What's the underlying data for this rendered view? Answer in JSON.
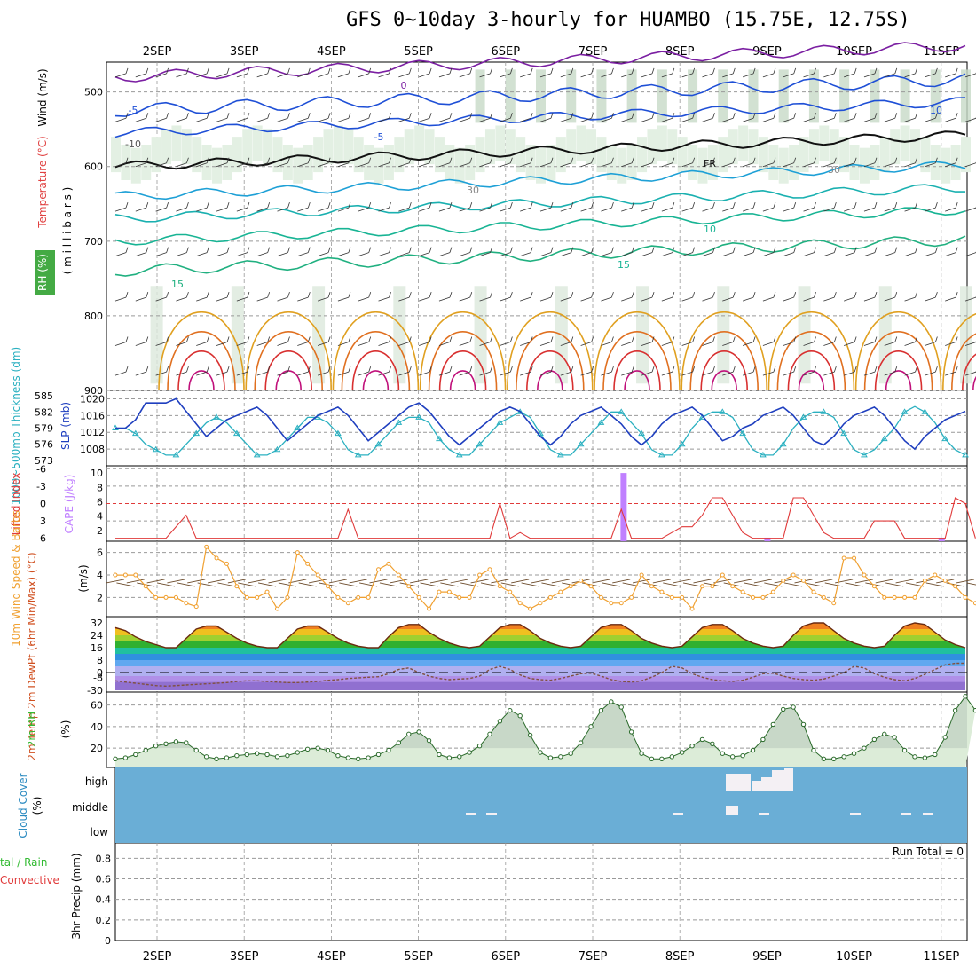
{
  "title": "GFS 0~10day 3-hourly for HUAMBO (15.75E, 12.75S)",
  "dates": [
    "2SEP",
    "3SEP",
    "4SEP",
    "5SEP",
    "6SEP",
    "7SEP",
    "8SEP",
    "9SEP",
    "10SEP",
    "11SEP"
  ],
  "colors": {
    "grid": "#999999",
    "rh_fill": "#2e7d4f",
    "slp": "#1f3fbf",
    "thickness": "#2ab0c0",
    "lifted": "#e03a3a",
    "cape": "#c080ff",
    "wind10": "#f0a030",
    "barb": "#6b4a2a",
    "rh2m": "#33bb33",
    "cloud": "#6aaed6",
    "precip_total": "#33bb33",
    "precip_conv": "#e03a3a"
  },
  "panels": {
    "upper": {
      "ylabel_wind": "Wind (m/s)",
      "ylabel_temp": "Temperature (°C)",
      "ylabel_rh": "RH (%)",
      "ylabel_mb": "( m i l l i b a r s )",
      "pressure_ticks": [
        "500",
        "600",
        "700",
        "800",
        "900"
      ],
      "contour_labels": [
        "0",
        "-5",
        "-5",
        "-10",
        "FR",
        "10",
        "15",
        "15",
        "10",
        "30",
        "30"
      ]
    },
    "slp": {
      "ylabel_left": "1000~500mb Thickness (dm)",
      "ylabel_right": "SLP (mb)",
      "thick_ticks": [
        "585",
        "582",
        "579",
        "576",
        "573"
      ],
      "slp_ticks": [
        "1020",
        "1016",
        "1012",
        "1008"
      ]
    },
    "li": {
      "ylabel_left": "Lifted Index",
      "ylabel_right": "CAPE (J/kg)",
      "li_ticks": [
        "-6",
        "-3",
        "0",
        "3",
        "6"
      ],
      "cape_ticks": [
        "10",
        "8",
        "6",
        "4",
        "2"
      ]
    },
    "wind10": {
      "ylabel": "10m Wind Speed & Barbs",
      "ylabel_units": "(m/s)",
      "ticks": [
        "6",
        "4",
        "2"
      ]
    },
    "temp2m": {
      "ylabel": "2m Temp 2m DewPt (6hr Min/Max) (°C)",
      "ticks": [
        "32",
        "24",
        "16",
        "8",
        "0",
        "-8",
        "-30"
      ]
    },
    "rh2m": {
      "ylabel": "2m RH",
      "ylabel_units": "(%)",
      "ticks": [
        "60",
        "40",
        "20"
      ]
    },
    "cloud": {
      "ylabel": "Cloud Cover",
      "ylabel_units": "(%)",
      "levels": [
        "high",
        "middle",
        "low"
      ]
    },
    "precip": {
      "ylabel": "3hr Precip (mm)",
      "legend_total": "tal / Rain",
      "legend_conv": "Convective",
      "ticks": [
        "0.8",
        "0.6",
        "0.4",
        "0.2",
        "0"
      ],
      "run_total": "Run Total = 0"
    }
  },
  "chart_data": [
    {
      "type": "line",
      "name": "slp_thickness",
      "series": [
        {
          "name": "SLP (mb)",
          "values": [
            1013,
            1013,
            1015,
            1019,
            1019,
            1019,
            1020,
            1017,
            1014,
            1011,
            1013,
            1015,
            1016,
            1017,
            1018,
            1016,
            1013,
            1010,
            1012,
            1014,
            1016,
            1017,
            1018,
            1016,
            1013,
            1010,
            1012,
            1014,
            1016,
            1018,
            1019,
            1017,
            1014,
            1011,
            1009,
            1011,
            1013,
            1015,
            1017,
            1018,
            1017,
            1014,
            1011,
            1009,
            1011,
            1014,
            1016,
            1017,
            1018,
            1016,
            1014,
            1011,
            1009,
            1011,
            1014,
            1016,
            1017,
            1018,
            1016,
            1013,
            1010,
            1011,
            1013,
            1014,
            1016,
            1017,
            1018,
            1016,
            1013,
            1010,
            1009,
            1011,
            1014,
            1016,
            1017,
            1018,
            1016,
            1013,
            1010,
            1008,
            1011,
            1013,
            1015,
            1016,
            1017
          ]
        },
        {
          "name": "Thickness (dm)",
          "values": [
            579,
            579,
            578,
            576,
            575,
            574,
            574,
            576,
            578,
            580,
            581,
            580,
            578,
            576,
            574,
            574,
            575,
            577,
            579,
            581,
            581,
            580,
            578,
            575,
            574,
            574,
            576,
            578,
            580,
            581,
            581,
            580,
            577,
            575,
            574,
            574,
            576,
            578,
            580,
            581,
            582,
            581,
            578,
            575,
            574,
            574,
            576,
            578,
            580,
            582,
            582,
            580,
            578,
            575,
            574,
            574,
            576,
            579,
            581,
            582,
            582,
            581,
            578,
            575,
            574,
            574,
            576,
            579,
            581,
            582,
            582,
            581,
            578,
            575,
            574,
            575,
            577,
            579,
            582,
            583,
            582,
            580,
            577,
            575,
            574
          ]
        }
      ]
    },
    {
      "type": "bar",
      "name": "cape",
      "x": [
        5.4,
        7.35,
        9.0,
        11.0
      ],
      "values": [
        0,
        10,
        1,
        1
      ]
    },
    {
      "type": "line",
      "name": "lifted_index",
      "values": [
        6,
        6,
        6,
        6,
        6,
        6,
        4,
        2,
        6,
        6,
        6,
        6,
        6,
        6,
        6,
        6,
        6,
        6,
        6,
        6,
        6,
        6,
        6,
        1,
        6,
        6,
        6,
        6,
        6,
        6,
        6,
        6,
        6,
        6,
        6,
        6,
        6,
        6,
        0,
        6,
        5,
        6,
        6,
        6,
        6,
        6,
        6,
        6,
        6,
        6,
        1,
        6,
        6,
        6,
        6,
        5,
        4,
        4,
        2,
        -1,
        -1,
        2,
        5,
        6,
        6,
        6,
        6,
        -1,
        -1,
        2,
        5,
        6,
        6,
        6,
        6,
        3,
        3,
        3,
        6,
        6,
        6,
        6,
        6,
        -1,
        0,
        6
      ]
    },
    {
      "type": "line",
      "name": "wind10m",
      "values": [
        4,
        4,
        4,
        3,
        2,
        2,
        2,
        1.5,
        1.2,
        6.5,
        5.5,
        5,
        3,
        2,
        2,
        2.5,
        1,
        2,
        6,
        5,
        4,
        3,
        2,
        1.5,
        2,
        2,
        4.5,
        5,
        4,
        3,
        2,
        1,
        2.5,
        2.5,
        2,
        2,
        4,
        4.5,
        3,
        2.5,
        1.5,
        1,
        1.5,
        2,
        2.5,
        3,
        3.5,
        3,
        2,
        1.5,
        1.5,
        2,
        4,
        3,
        2.5,
        2,
        2,
        1,
        3,
        3,
        4,
        3,
        2.5,
        2,
        2,
        2.5,
        3.5,
        4,
        3.5,
        2.5,
        2,
        1.5,
        5.5,
        5.5,
        4,
        3,
        2,
        2,
        2,
        2,
        3.5,
        4,
        3.5,
        3,
        2,
        1.5,
        1
      ]
    },
    {
      "type": "area",
      "name": "temp2m",
      "ylim": [
        -30,
        36
      ],
      "series": [
        {
          "name": "2m Temp",
          "values": [
            29,
            27,
            23,
            20,
            18,
            16,
            16,
            22,
            28,
            30,
            30,
            26,
            22,
            19,
            17,
            16,
            16,
            22,
            28,
            30,
            30,
            26,
            22,
            19,
            17,
            16,
            16,
            23,
            29,
            31,
            31,
            26,
            22,
            19,
            17,
            16,
            17,
            23,
            29,
            31,
            31,
            27,
            22,
            19,
            17,
            16,
            17,
            23,
            29,
            31,
            31,
            27,
            22,
            19,
            17,
            16,
            17,
            23,
            29,
            31,
            31,
            27,
            22,
            19,
            17,
            16,
            17,
            24,
            30,
            32,
            32,
            27,
            22,
            19,
            17,
            16,
            17,
            24,
            30,
            32,
            31,
            26,
            21,
            18,
            16
          ]
        },
        {
          "name": "2m DewPt",
          "values": [
            -14,
            -16,
            -18,
            -20,
            -22,
            -23,
            -22,
            -21,
            -20,
            -19,
            -18,
            -17,
            -15,
            -14,
            -14,
            -15,
            -16,
            -17,
            -17,
            -16,
            -15,
            -13,
            -12,
            -10,
            -9,
            -8,
            -7,
            -2,
            2,
            3,
            0,
            -6,
            -10,
            -12,
            -11,
            -10,
            -6,
            2,
            4,
            2,
            -4,
            -10,
            -12,
            -13,
            -10,
            -6,
            -2,
            -1,
            -6,
            -12,
            -15,
            -16,
            -14,
            -8,
            0,
            4,
            3,
            -2,
            -8,
            -12,
            -14,
            -15,
            -13,
            -8,
            -2,
            -1,
            -6,
            -10,
            -12,
            -13,
            -11,
            -6,
            0,
            4,
            3,
            -2,
            -8,
            -12,
            -14,
            -10,
            -3,
            2,
            5,
            6,
            6
          ]
        }
      ]
    },
    {
      "type": "area",
      "name": "rh2m",
      "ylim": [
        0,
        70
      ],
      "values": [
        10,
        11,
        14,
        18,
        22,
        24,
        26,
        25,
        18,
        12,
        10,
        11,
        13,
        14,
        15,
        14,
        12,
        13,
        16,
        19,
        20,
        18,
        13,
        11,
        10,
        11,
        14,
        18,
        25,
        33,
        35,
        27,
        14,
        11,
        12,
        16,
        22,
        33,
        45,
        55,
        50,
        32,
        16,
        11,
        12,
        15,
        25,
        40,
        55,
        63,
        58,
        35,
        15,
        10,
        10,
        12,
        16,
        22,
        28,
        24,
        15,
        12,
        13,
        18,
        28,
        42,
        56,
        58,
        42,
        18,
        10,
        10,
        12,
        15,
        20,
        28,
        33,
        30,
        18,
        12,
        11,
        14,
        30,
        55,
        68,
        55
      ]
    },
    {
      "type": "bar",
      "name": "precip_3hr",
      "values": [
        0
      ]
    }
  ]
}
